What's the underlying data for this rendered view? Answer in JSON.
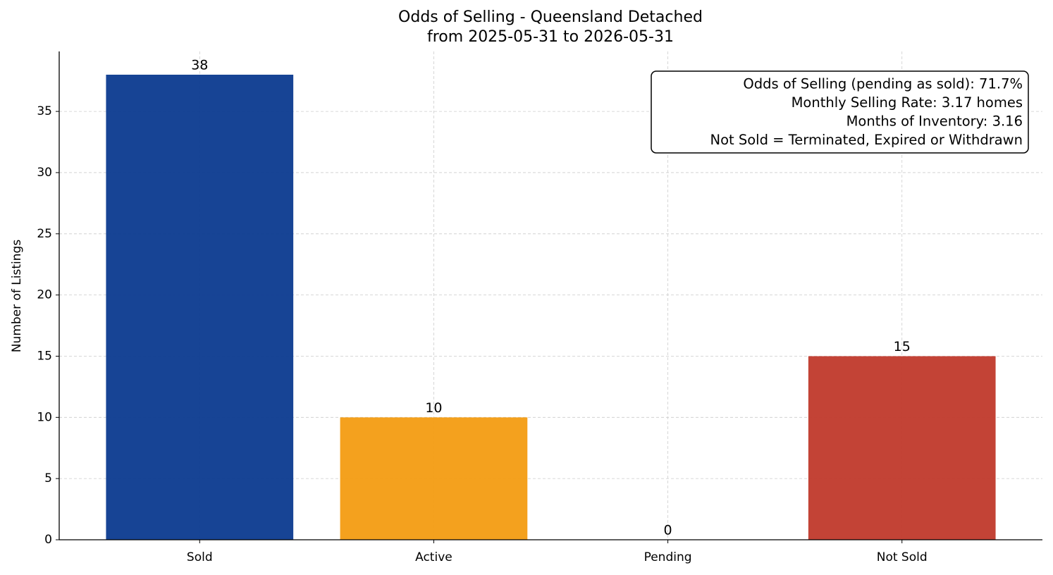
{
  "chart_data": {
    "type": "bar",
    "title": [
      "Odds of Selling - Queensland Detached",
      "from 2025-05-31 to 2026-05-31"
    ],
    "ylabel": "Number of Listings",
    "categories": [
      "Sold",
      "Active",
      "Pending",
      "Not Sold"
    ],
    "values": [
      38,
      10,
      0,
      15
    ],
    "colors": [
      "#0b3a8f",
      "#f39c12",
      "#95a5a6",
      "#c0392b"
    ],
    "ylim": [
      0,
      39.9
    ],
    "yticks": [
      0,
      5,
      10,
      15,
      20,
      25,
      30,
      35
    ],
    "grid": true,
    "annotation": [
      "Odds of Selling (pending as sold): 71.7%",
      "Monthly Selling Rate: 3.17 homes",
      "Months of Inventory: 3.16",
      "Not Sold = Terminated, Expired or Withdrawn"
    ]
  }
}
